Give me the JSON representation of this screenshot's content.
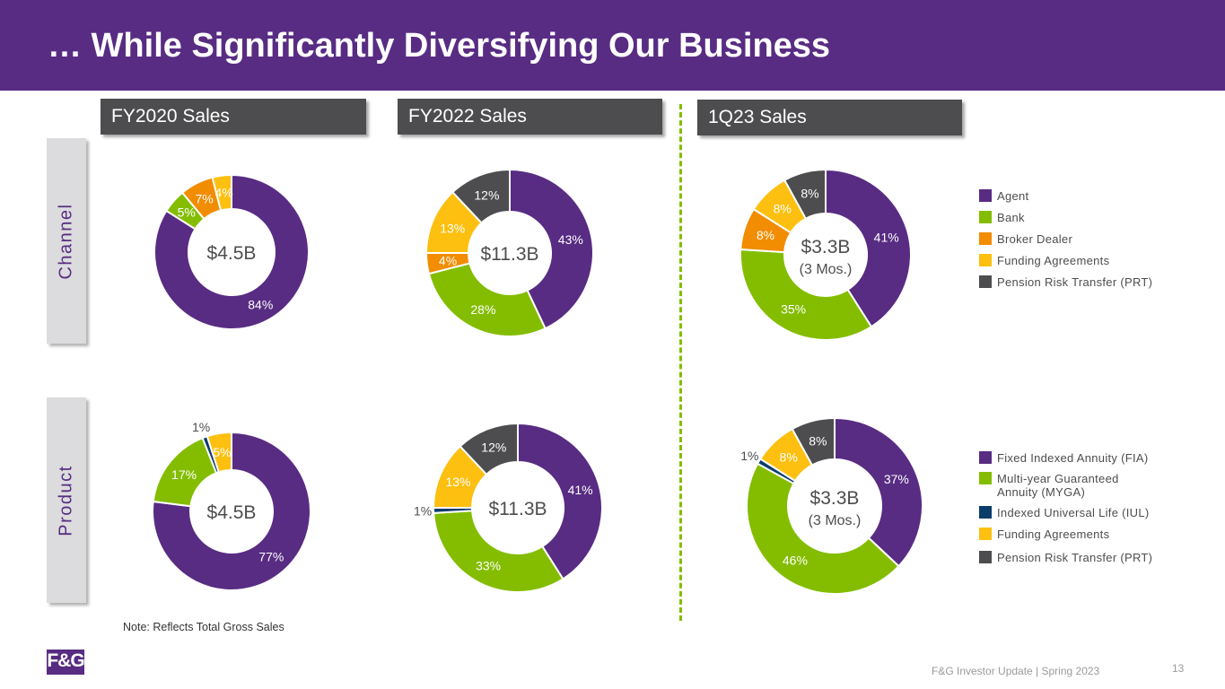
{
  "title": "… While Significantly Diversifying Our Business",
  "columns": [
    "FY2020 Sales",
    "FY2022 Sales",
    "1Q23 Sales"
  ],
  "rows": [
    "Channel",
    "Product"
  ],
  "note": "Note:  Reflects Total Gross Sales",
  "footer": "F&G Investor Update | Spring 2023",
  "page_number": "13",
  "logo_text": "F&G",
  "colors": {
    "header": "#582c83",
    "agent": "#582c83",
    "bank": "#84bd00",
    "broker": "#f28c00",
    "funding": "#fdc010",
    "prt": "#4d4d4f",
    "iul": "#0b3d6b"
  },
  "legend_channel": [
    {
      "label": "Agent",
      "color": "#582c83"
    },
    {
      "label": "Bank",
      "color": "#84bd00"
    },
    {
      "label": "Broker Dealer",
      "color": "#f28c00"
    },
    {
      "label": "Funding Agreements",
      "color": "#fdc010"
    },
    {
      "label": "Pension Risk Transfer (PRT)",
      "color": "#4d4d4f"
    }
  ],
  "legend_product": [
    {
      "label": "Fixed Indexed Annuity (FIA)",
      "color": "#582c83"
    },
    {
      "label": "Multi-year Guaranteed Annuity (MYGA)",
      "color": "#84bd00"
    },
    {
      "label": "Indexed Universal Life (IUL)",
      "color": "#0b3d6b"
    },
    {
      "label": "Funding Agreements",
      "color": "#fdc010"
    },
    {
      "label": "Pension Risk Transfer (PRT)",
      "color": "#4d4d4f"
    }
  ],
  "chart_data": [
    {
      "type": "pie",
      "title": "FY2020 Sales",
      "group": "Channel",
      "center_label": "$4.5B",
      "center_sublabel": "",
      "categories": [
        "Agent",
        "Bank",
        "Broker Dealer",
        "Funding Agreements"
      ],
      "values": [
        84,
        5,
        7,
        4
      ],
      "labels": [
        "84%",
        "5%",
        "7%",
        "4%"
      ]
    },
    {
      "type": "pie",
      "title": "FY2022 Sales",
      "group": "Channel",
      "center_label": "$11.3B",
      "center_sublabel": "",
      "categories": [
        "Agent",
        "Bank",
        "Broker Dealer",
        "Funding Agreements",
        "Pension Risk Transfer (PRT)"
      ],
      "values": [
        43,
        28,
        4,
        13,
        12
      ],
      "labels": [
        "43%",
        "28%",
        "4%",
        "13%",
        "12%"
      ]
    },
    {
      "type": "pie",
      "title": "1Q23 Sales",
      "group": "Channel",
      "center_label": "$3.3B",
      "center_sublabel": "(3 Mos.)",
      "categories": [
        "Agent",
        "Bank",
        "Broker Dealer",
        "Funding Agreements",
        "Pension Risk Transfer (PRT)"
      ],
      "values": [
        41,
        35,
        8,
        8,
        8
      ],
      "labels": [
        "41%",
        "35%",
        "8%",
        "8%",
        "8%"
      ]
    },
    {
      "type": "pie",
      "title": "FY2020 Sales",
      "group": "Product",
      "center_label": "$4.5B",
      "center_sublabel": "",
      "categories": [
        "Fixed Indexed Annuity (FIA)",
        "Multi-year Guaranteed Annuity (MYGA)",
        "Indexed Universal Life (IUL)",
        "Funding Agreements"
      ],
      "values": [
        77,
        17,
        1,
        5
      ],
      "labels": [
        "77%",
        "17%",
        "1%",
        "5%"
      ]
    },
    {
      "type": "pie",
      "title": "FY2022 Sales",
      "group": "Product",
      "center_label": "$11.3B",
      "center_sublabel": "",
      "categories": [
        "Fixed Indexed Annuity (FIA)",
        "Multi-year Guaranteed Annuity (MYGA)",
        "Indexed Universal Life (IUL)",
        "Funding Agreements",
        "Pension Risk Transfer (PRT)"
      ],
      "values": [
        41,
        33,
        1,
        13,
        12
      ],
      "labels": [
        "41%",
        "33%",
        "1%",
        "13%",
        "12%"
      ]
    },
    {
      "type": "pie",
      "title": "1Q23 Sales",
      "group": "Product",
      "center_label": "$3.3B",
      "center_sublabel": "(3 Mos.)",
      "categories": [
        "Fixed Indexed Annuity (FIA)",
        "Multi-year Guaranteed Annuity (MYGA)",
        "Indexed Universal Life (IUL)",
        "Funding Agreements",
        "Pension Risk Transfer (PRT)"
      ],
      "values": [
        37,
        46,
        1,
        8,
        8
      ],
      "labels": [
        "37%",
        "46%",
        "1%",
        "8%",
        "8%"
      ]
    }
  ]
}
